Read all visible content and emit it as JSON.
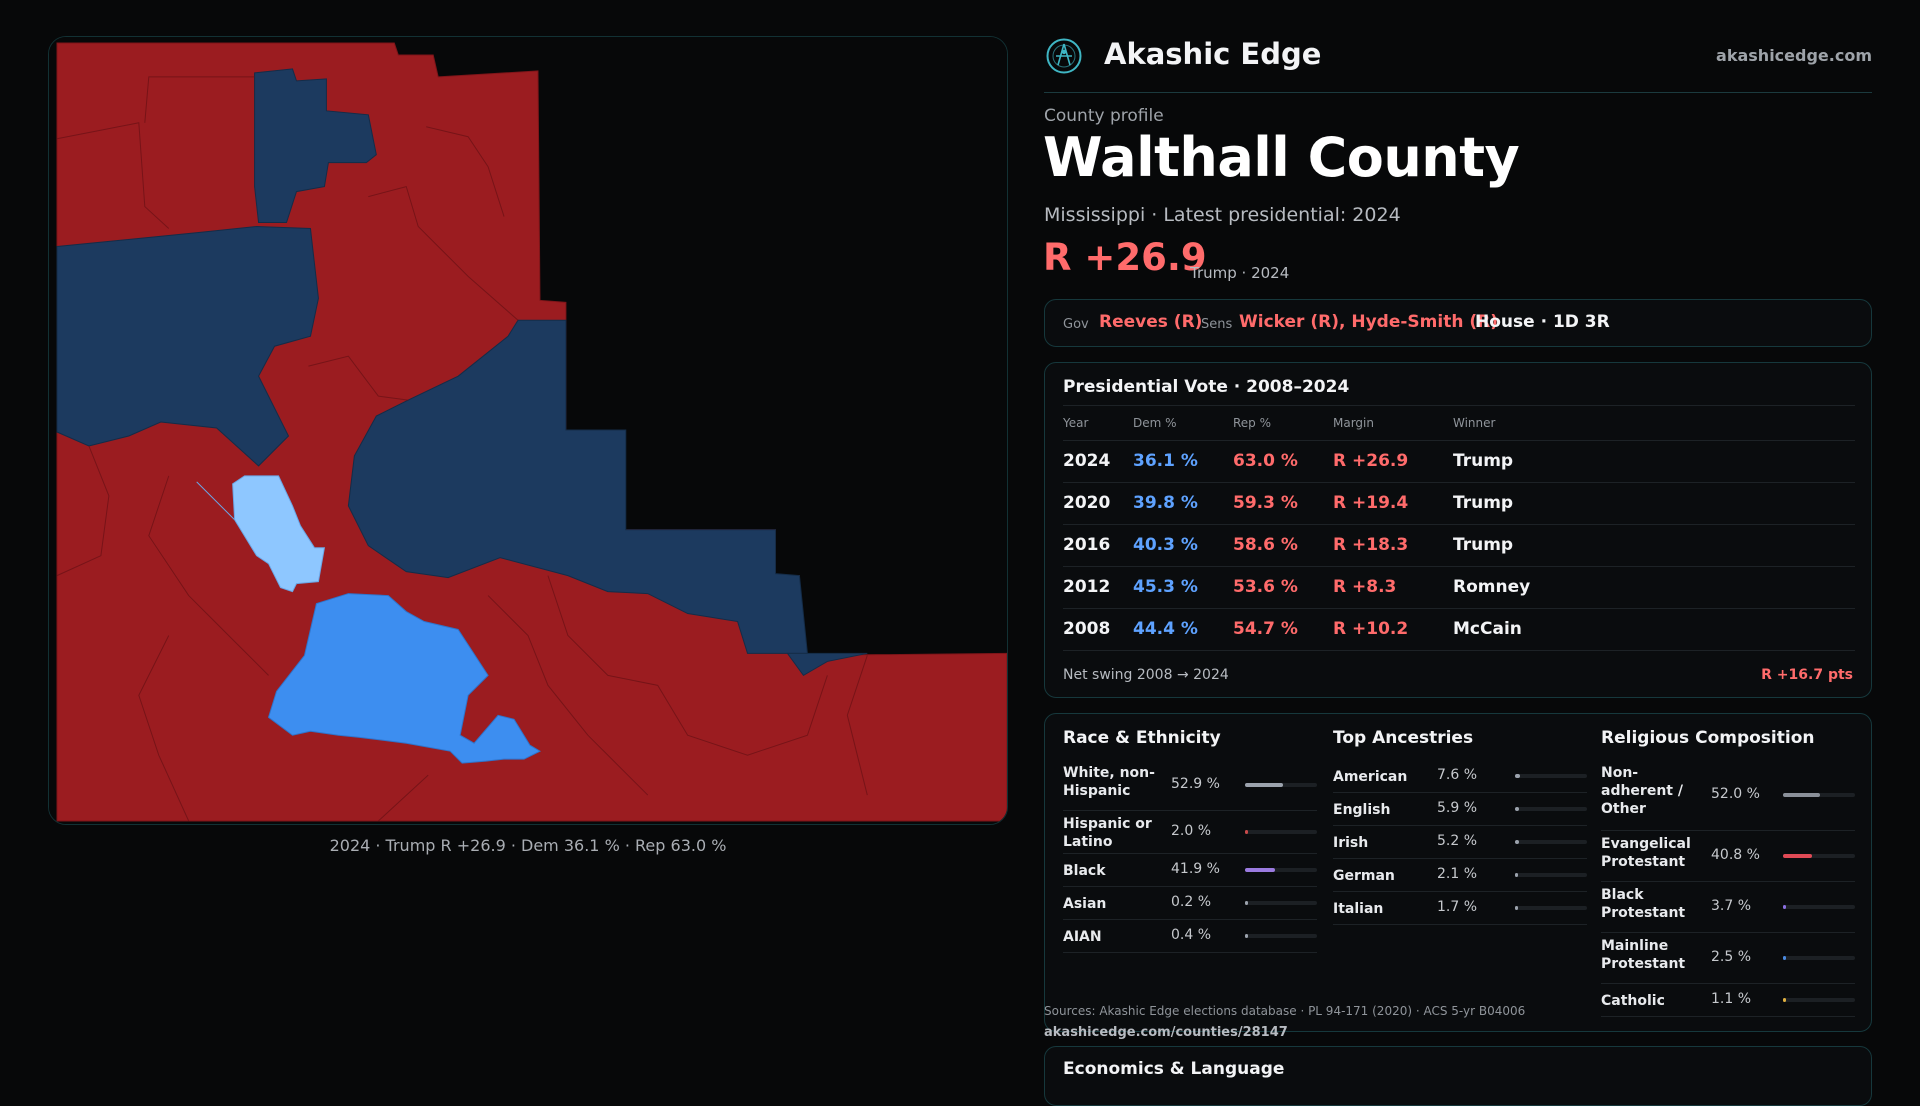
{
  "brand": {
    "name": "Akashic Edge",
    "domain": "akashicedge.com",
    "logo_icon": "atom-compass-icon",
    "accent": "#3fb6c4"
  },
  "profile": {
    "eyebrow": "County profile",
    "title": "Walthall County",
    "subtitle": "Mississippi · Latest presidential: 2024",
    "margin": "R +26.9",
    "margin_note": "Trump · 2024"
  },
  "officials": {
    "gov_label": "Gov",
    "gov_value": "Reeves (R)",
    "sens_label": "Sens",
    "sens_value": "Wicker (R), Hyde-Smith (R)",
    "house": "House · 1D 3R"
  },
  "map": {
    "caption": "2024 · Trump R +26.9 · Dem 36.1 % · Rep 63.0 %",
    "colors": {
      "strong_rep": "#9b1c20",
      "lean_dem": "#1c3a5f",
      "mid_dem": "#3d8ef0",
      "light_dem": "#8ec7ff"
    }
  },
  "presidential": {
    "title": "Presidential Vote · 2008–2024",
    "headers": {
      "year": "Year",
      "dem": "Dem %",
      "rep": "Rep %",
      "margin": "Margin",
      "winner": "Winner"
    },
    "rows": [
      {
        "year": "2024",
        "dem": "36.1 %",
        "rep": "63.0 %",
        "margin": "R +26.9",
        "winner": "Trump"
      },
      {
        "year": "2020",
        "dem": "39.8 %",
        "rep": "59.3 %",
        "margin": "R +19.4",
        "winner": "Trump"
      },
      {
        "year": "2016",
        "dem": "40.3 %",
        "rep": "58.6 %",
        "margin": "R +18.3",
        "winner": "Trump"
      },
      {
        "year": "2012",
        "dem": "45.3 %",
        "rep": "53.6 %",
        "margin": "R +8.3",
        "winner": "Romney"
      },
      {
        "year": "2008",
        "dem": "44.4 %",
        "rep": "54.7 %",
        "margin": "R +10.2",
        "winner": "McCain"
      }
    ],
    "swing_label": "Net swing 2008 → 2024",
    "swing_value": "R +16.7 pts"
  },
  "race": {
    "title": "Race & Ethnicity",
    "items": [
      {
        "name": "White, non-Hispanic",
        "pct": "52.9 %",
        "value": 0.529,
        "color": "#9ca3ad"
      },
      {
        "name": "Hispanic or Latino",
        "pct": "2.0 %",
        "value": 0.02,
        "color": "#c94a4a"
      },
      {
        "name": "Black",
        "pct": "41.9 %",
        "value": 0.419,
        "color": "#9b7be0"
      },
      {
        "name": "Asian",
        "pct": "0.2 %",
        "value": 0.002,
        "color": "#9ca3ad"
      },
      {
        "name": "AIAN",
        "pct": "0.4 %",
        "value": 0.004,
        "color": "#9ca3ad"
      }
    ]
  },
  "ancestry": {
    "title": "Top Ancestries",
    "items": [
      {
        "name": "American",
        "pct": "7.6 %",
        "value": 0.076,
        "color": "#9ca3ad"
      },
      {
        "name": "English",
        "pct": "5.9 %",
        "value": 0.059,
        "color": "#9ca3ad"
      },
      {
        "name": "Irish",
        "pct": "5.2 %",
        "value": 0.052,
        "color": "#9ca3ad"
      },
      {
        "name": "German",
        "pct": "2.1 %",
        "value": 0.021,
        "color": "#9ca3ad"
      },
      {
        "name": "Italian",
        "pct": "1.7 %",
        "value": 0.017,
        "color": "#9ca3ad"
      }
    ]
  },
  "religion": {
    "title": "Religious Composition",
    "items": [
      {
        "name": "Non-adherent / Other",
        "pct": "52.0 %",
        "value": 0.52,
        "color": "#8a9099"
      },
      {
        "name": "Evangelical Protestant",
        "pct": "40.8 %",
        "value": 0.408,
        "color": "#e04a55"
      },
      {
        "name": "Black Protestant",
        "pct": "3.7 %",
        "value": 0.037,
        "color": "#8a6fe0"
      },
      {
        "name": "Mainline Protestant",
        "pct": "2.5 %",
        "value": 0.025,
        "color": "#4a8ae0"
      },
      {
        "name": "Catholic",
        "pct": "1.1 %",
        "value": 0.011,
        "color": "#e0b040"
      }
    ]
  },
  "sources": {
    "text": "Sources: Akashic Edge elections database · PL 94-171 (2020) · ACS 5-yr B04006",
    "url": "akashicedge.com/counties/28147"
  },
  "economics": {
    "title": "Economics & Language"
  }
}
